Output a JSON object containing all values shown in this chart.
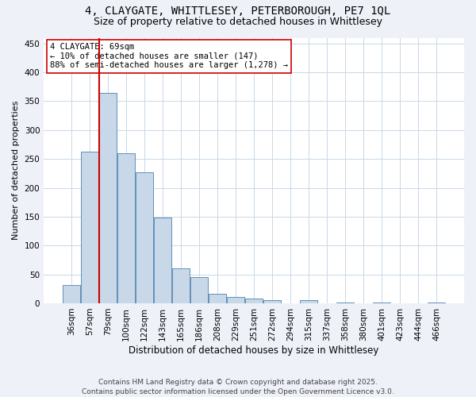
{
  "title_line1": "4, CLAYGATE, WHITTLESEY, PETERBOROUGH, PE7 1QL",
  "title_line2": "Size of property relative to detached houses in Whittlesey",
  "xlabel": "Distribution of detached houses by size in Whittlesey",
  "ylabel": "Number of detached properties",
  "categories": [
    "36sqm",
    "57sqm",
    "79sqm",
    "100sqm",
    "122sqm",
    "143sqm",
    "165sqm",
    "186sqm",
    "208sqm",
    "229sqm",
    "251sqm",
    "272sqm",
    "294sqm",
    "315sqm",
    "337sqm",
    "358sqm",
    "380sqm",
    "401sqm",
    "423sqm",
    "444sqm",
    "466sqm"
  ],
  "values": [
    32,
    262,
    365,
    260,
    227,
    148,
    60,
    45,
    17,
    11,
    8,
    6,
    0,
    5,
    0,
    2,
    0,
    2,
    0,
    0,
    2
  ],
  "bar_color": "#c8d8e8",
  "bar_edge_color": "#6090b8",
  "vline_x_index": 1.5,
  "vline_color": "#cc0000",
  "annotation_text": "4 CLAYGATE: 69sqm\n← 10% of detached houses are smaller (147)\n88% of semi-detached houses are larger (1,278) →",
  "annotation_box_color": "#ffffff",
  "annotation_box_edge": "#cc0000",
  "ylim": [
    0,
    460
  ],
  "yticks": [
    0,
    50,
    100,
    150,
    200,
    250,
    300,
    350,
    400,
    450
  ],
  "bg_color": "#eef2f8",
  "plot_bg_color": "#ffffff",
  "grid_color": "#c8d8e8",
  "footer": "Contains HM Land Registry data © Crown copyright and database right 2025.\nContains public sector information licensed under the Open Government Licence v3.0.",
  "title_fontsize": 10,
  "subtitle_fontsize": 9,
  "xlabel_fontsize": 8.5,
  "ylabel_fontsize": 8,
  "tick_fontsize": 7.5,
  "footer_fontsize": 6.5,
  "annot_fontsize": 7.5
}
